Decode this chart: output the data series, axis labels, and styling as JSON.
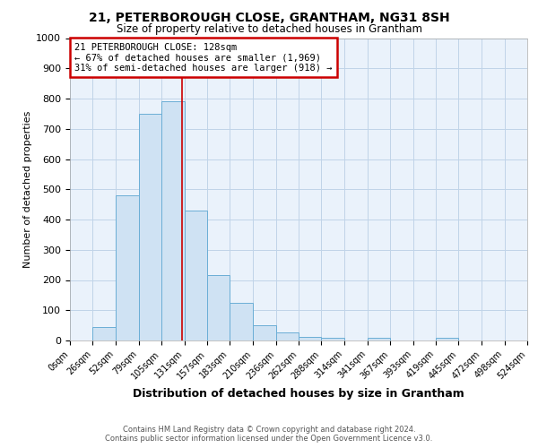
{
  "title": "21, PETERBOROUGH CLOSE, GRANTHAM, NG31 8SH",
  "subtitle": "Size of property relative to detached houses in Grantham",
  "xlabel": "Distribution of detached houses by size in Grantham",
  "ylabel": "Number of detached properties",
  "annotation_line1": "21 PETERBOROUGH CLOSE: 128sqm",
  "annotation_line2": "← 67% of detached houses are smaller (1,969)",
  "annotation_line3": "31% of semi-detached houses are larger (918) →",
  "bin_edges": [
    0,
    26,
    52,
    79,
    105,
    131,
    157,
    183,
    210,
    236,
    262,
    288,
    314,
    341,
    367,
    393,
    419,
    445,
    472,
    498,
    524
  ],
  "bin_labels": [
    "0sqm",
    "26sqm",
    "52sqm",
    "79sqm",
    "105sqm",
    "131sqm",
    "157sqm",
    "183sqm",
    "210sqm",
    "236sqm",
    "262sqm",
    "288sqm",
    "314sqm",
    "341sqm",
    "367sqm",
    "393sqm",
    "419sqm",
    "445sqm",
    "472sqm",
    "498sqm",
    "524sqm"
  ],
  "bar_values": [
    0,
    45,
    480,
    750,
    790,
    430,
    215,
    125,
    50,
    27,
    12,
    10,
    0,
    10,
    0,
    0,
    10,
    0,
    0,
    0
  ],
  "bar_color": "#cfe2f3",
  "bar_edge_color": "#6baed6",
  "vline_x": 128,
  "vline_color": "#cc0000",
  "ylim": [
    0,
    1000
  ],
  "yticks": [
    0,
    100,
    200,
    300,
    400,
    500,
    600,
    700,
    800,
    900,
    1000
  ],
  "ax_facecolor": "#eaf2fb",
  "background_color": "#ffffff",
  "grid_color": "#c0d4e8",
  "footer_line1": "Contains HM Land Registry data © Crown copyright and database right 2024.",
  "footer_line2": "Contains public sector information licensed under the Open Government Licence v3.0.",
  "annotation_box_color": "#cc0000",
  "property_size": 128
}
